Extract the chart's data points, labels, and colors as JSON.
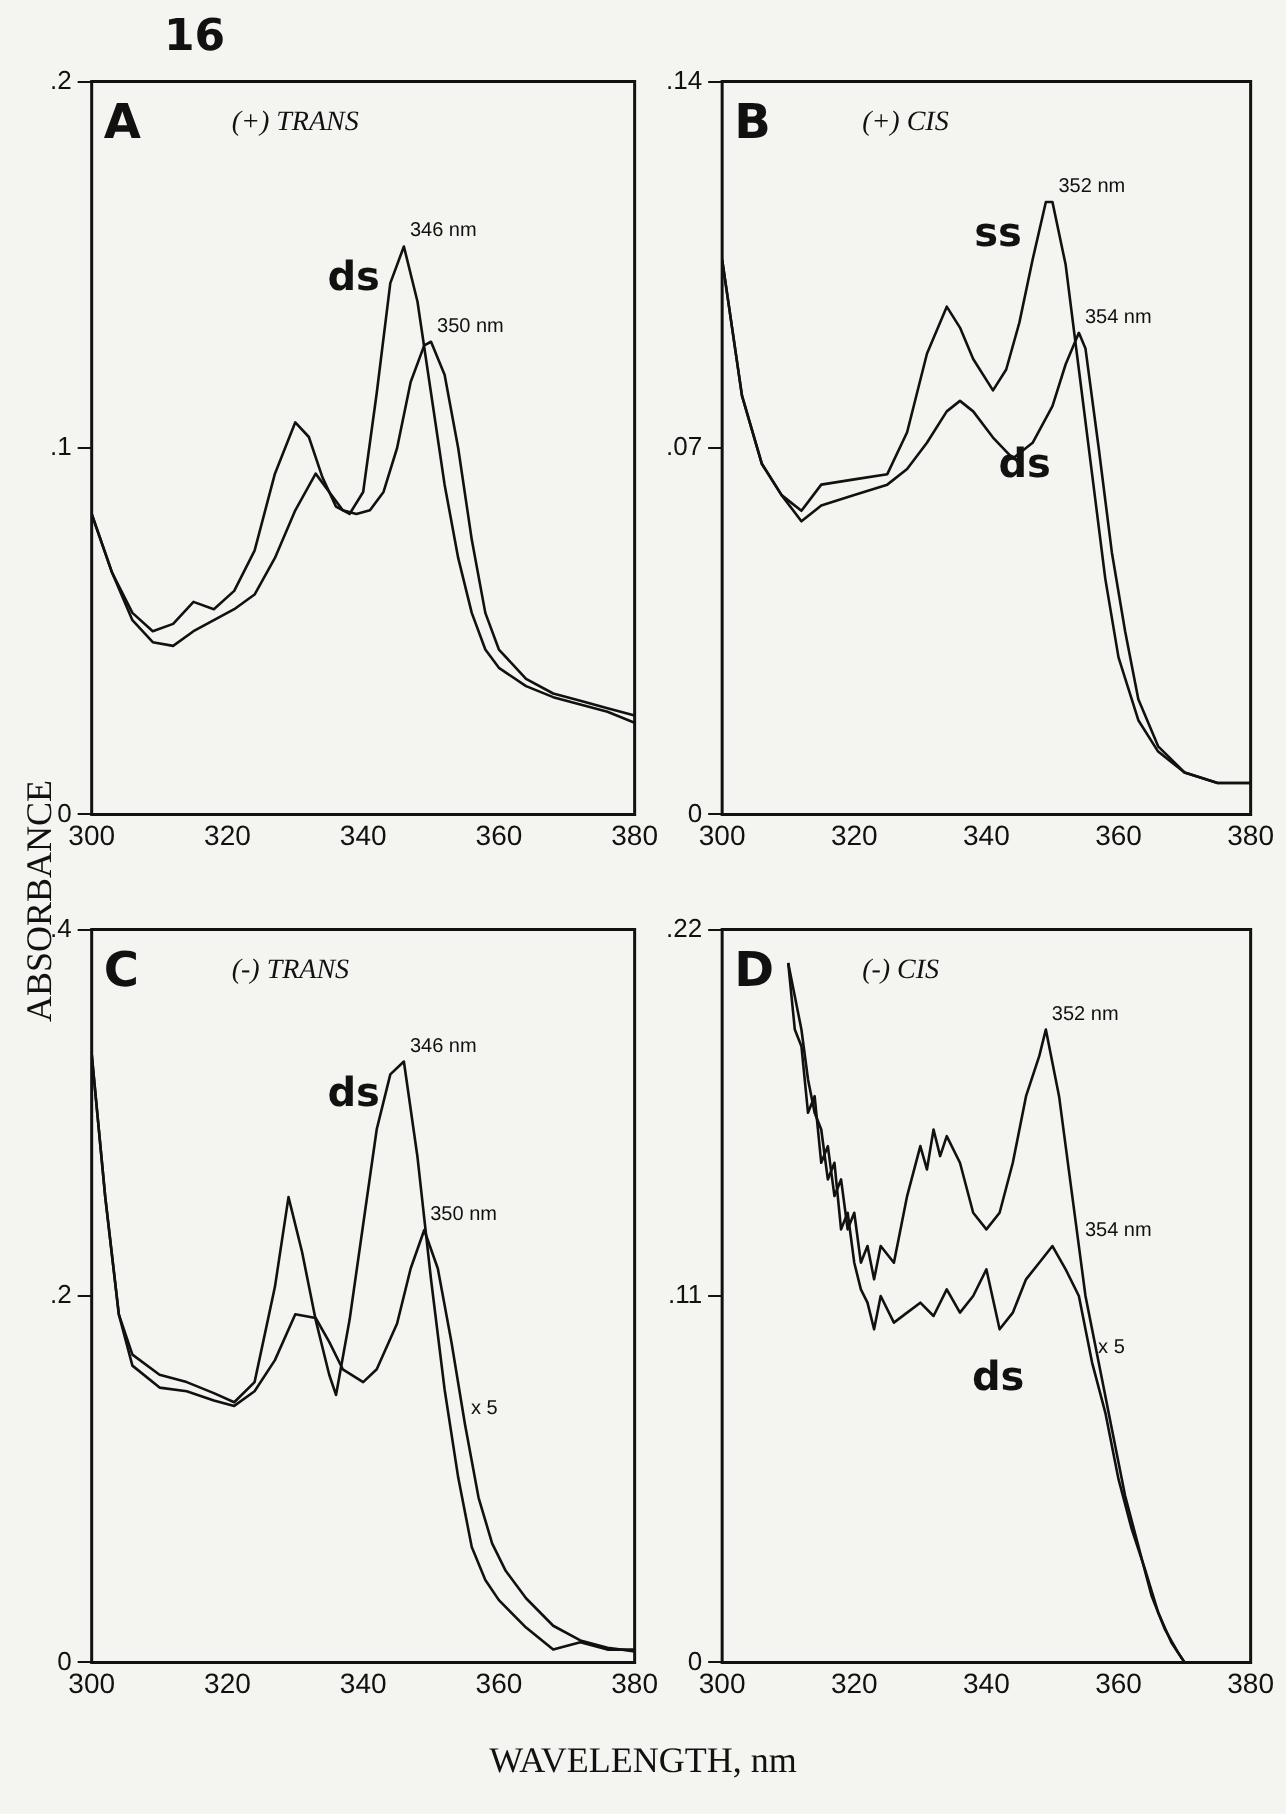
{
  "chart_data": [
    {
      "type": "line",
      "title": "A",
      "subtitle": "(+) TRANS",
      "ylabel": "ABSORBANCE",
      "annotations": [
        "16",
        {
          "text": "346 nm",
          "x": 346,
          "y": 0.155
        },
        {
          "text": "350 nm",
          "x": 350,
          "y": 0.129
        }
      ],
      "xlim": [
        300,
        380
      ],
      "xticks": [
        300,
        320,
        340,
        360,
        380
      ],
      "ylim": [
        0,
        0.2
      ],
      "yticks": [
        {
          "value": 0,
          "label": "0"
        },
        {
          "value": 0.1,
          "label": ".1"
        },
        {
          "value": 0.2,
          "label": ".2"
        }
      ],
      "series": [
        {
          "name": "ds",
          "color": "#111111",
          "x": [
            300,
            303,
            306,
            309,
            312,
            315,
            318,
            321,
            324,
            327,
            330,
            332,
            334,
            336,
            338,
            340,
            342,
            344,
            346,
            348,
            350,
            352,
            354,
            356,
            358,
            360,
            364,
            368,
            372,
            376,
            380
          ],
          "values": [
            0.082,
            0.066,
            0.055,
            0.05,
            0.052,
            0.058,
            0.056,
            0.061,
            0.072,
            0.093,
            0.107,
            0.103,
            0.092,
            0.084,
            0.082,
            0.088,
            0.115,
            0.145,
            0.155,
            0.14,
            0.115,
            0.09,
            0.07,
            0.055,
            0.045,
            0.04,
            0.035,
            0.032,
            0.03,
            0.028,
            0.025
          ]
        },
        {
          "color": "#111111",
          "x": [
            300,
            303,
            306,
            309,
            312,
            315,
            318,
            321,
            324,
            327,
            330,
            333,
            335,
            337,
            339,
            341,
            343,
            345,
            347,
            349,
            350,
            352,
            354,
            356,
            358,
            360,
            364,
            368,
            372,
            376,
            380
          ],
          "values": [
            0.082,
            0.066,
            0.053,
            0.047,
            0.046,
            0.05,
            0.053,
            0.056,
            0.06,
            0.07,
            0.083,
            0.093,
            0.088,
            0.083,
            0.082,
            0.083,
            0.088,
            0.1,
            0.118,
            0.128,
            0.129,
            0.12,
            0.1,
            0.075,
            0.055,
            0.045,
            0.037,
            0.033,
            0.031,
            0.029,
            0.027
          ]
        }
      ]
    },
    {
      "type": "line",
      "title": "B",
      "subtitle": "(+) CIS",
      "annotations": [
        {
          "text": "352 nm",
          "x": 350,
          "y": 0.117
        },
        {
          "text": "354 nm",
          "x": 354,
          "y": 0.092
        }
      ],
      "xlim": [
        300,
        380
      ],
      "xticks": [
        300,
        320,
        340,
        360,
        380
      ],
      "ylim": [
        0,
        0.14
      ],
      "yticks": [
        {
          "value": 0,
          "label": "0"
        },
        {
          "value": 0.07,
          "label": ".07"
        },
        {
          "value": 0.14,
          "label": ".14"
        }
      ],
      "series": [
        {
          "name": "ss",
          "color": "#111111",
          "x": [
            300,
            303,
            306,
            309,
            312,
            315,
            320,
            325,
            328,
            331,
            334,
            336,
            338,
            341,
            343,
            345,
            347,
            349,
            350,
            352,
            354,
            356,
            358,
            360,
            363,
            366,
            370,
            375,
            380
          ],
          "values": [
            0.106,
            0.08,
            0.067,
            0.061,
            0.058,
            0.063,
            0.064,
            0.065,
            0.073,
            0.088,
            0.097,
            0.093,
            0.087,
            0.081,
            0.085,
            0.094,
            0.106,
            0.117,
            0.117,
            0.105,
            0.085,
            0.065,
            0.045,
            0.03,
            0.018,
            0.012,
            0.008,
            0.006,
            0.006
          ]
        },
        {
          "name": "ds",
          "color": "#111111",
          "x": [
            300,
            303,
            306,
            309,
            312,
            315,
            320,
            325,
            328,
            331,
            334,
            336,
            338,
            341,
            344,
            347,
            350,
            352,
            354,
            355,
            357,
            359,
            361,
            363,
            366,
            370,
            375,
            380
          ],
          "values": [
            0.106,
            0.08,
            0.067,
            0.061,
            0.056,
            0.059,
            0.061,
            0.063,
            0.066,
            0.071,
            0.077,
            0.079,
            0.077,
            0.072,
            0.068,
            0.071,
            0.078,
            0.086,
            0.092,
            0.089,
            0.07,
            0.05,
            0.035,
            0.022,
            0.013,
            0.008,
            0.006,
            0.006
          ]
        }
      ]
    },
    {
      "type": "line",
      "title": "C",
      "subtitle": "(-) TRANS",
      "xlabel": "WAVELENGTH, nm",
      "annotations": [
        {
          "text": "346 nm",
          "x": 346,
          "y": 0.328
        },
        {
          "text": "350 nm",
          "x": 349,
          "y": 0.236
        },
        {
          "text": "x 5",
          "x": 355,
          "y": 0.13
        }
      ],
      "xlim": [
        300,
        380
      ],
      "xticks": [
        300,
        320,
        340,
        360,
        380
      ],
      "ylim": [
        0,
        0.4
      ],
      "yticks": [
        {
          "value": 0,
          "label": "0"
        },
        {
          "value": 0.2,
          "label": ".2"
        },
        {
          "value": 0.4,
          "label": ".4"
        }
      ],
      "series": [
        {
          "name": "ds",
          "color": "#111111",
          "x": [
            300,
            302,
            304,
            306,
            310,
            314,
            318,
            321,
            324,
            327,
            329,
            331,
            333,
            335,
            336,
            338,
            340,
            342,
            344,
            346,
            348,
            350,
            352,
            354,
            356,
            358,
            360,
            364,
            368,
            372,
            376,
            380
          ],
          "values": [
            0.332,
            0.254,
            0.19,
            0.168,
            0.157,
            0.153,
            0.147,
            0.142,
            0.153,
            0.205,
            0.254,
            0.224,
            0.187,
            0.157,
            0.146,
            0.187,
            0.239,
            0.291,
            0.321,
            0.328,
            0.276,
            0.209,
            0.149,
            0.101,
            0.063,
            0.045,
            0.034,
            0.019,
            0.007,
            0.011,
            0.007,
            0.007
          ]
        },
        {
          "color": "#111111",
          "x": [
            300,
            302,
            304,
            306,
            310,
            314,
            318,
            321,
            324,
            327,
            330,
            333,
            335,
            337,
            340,
            342,
            345,
            347,
            349,
            351,
            353,
            355,
            357,
            359,
            361,
            364,
            368,
            372,
            376,
            380
          ],
          "values": [
            0.332,
            0.254,
            0.19,
            0.162,
            0.15,
            0.148,
            0.143,
            0.14,
            0.148,
            0.165,
            0.19,
            0.188,
            0.175,
            0.16,
            0.153,
            0.16,
            0.185,
            0.215,
            0.236,
            0.215,
            0.175,
            0.13,
            0.09,
            0.065,
            0.05,
            0.035,
            0.02,
            0.012,
            0.008,
            0.006
          ]
        }
      ]
    },
    {
      "type": "line",
      "title": "D",
      "subtitle": "(-) CIS",
      "annotations": [
        {
          "text": "352 nm",
          "x": 349,
          "y": 0.19
        },
        {
          "text": "354 nm",
          "x": 354,
          "y": 0.125
        },
        {
          "text": "x 5",
          "x": 356,
          "y": 0.09
        }
      ],
      "xlim": [
        300,
        380
      ],
      "xticks": [
        300,
        320,
        340,
        360,
        380
      ],
      "ylim": [
        0,
        0.22
      ],
      "yticks": [
        {
          "value": 0,
          "label": "0"
        },
        {
          "value": 0.11,
          "label": ".11"
        },
        {
          "value": 0.22,
          "label": ".22"
        }
      ],
      "series": [
        {
          "color": "#111111",
          "x": [
            310,
            311,
            312,
            313,
            314,
            315,
            316,
            317,
            318,
            319,
            320,
            321,
            322,
            323,
            324,
            326,
            328,
            330,
            331,
            332,
            333,
            334,
            336,
            338,
            340,
            342,
            344,
            346,
            348,
            349,
            351,
            353,
            355,
            357,
            359,
            361,
            363,
            365,
            367,
            369,
            370
          ],
          "values": [
            0.21,
            0.19,
            0.185,
            0.165,
            0.17,
            0.15,
            0.155,
            0.14,
            0.145,
            0.13,
            0.135,
            0.12,
            0.125,
            0.115,
            0.125,
            0.12,
            0.14,
            0.155,
            0.148,
            0.16,
            0.152,
            0.158,
            0.15,
            0.135,
            0.13,
            0.135,
            0.15,
            0.17,
            0.182,
            0.19,
            0.17,
            0.14,
            0.11,
            0.09,
            0.07,
            0.05,
            0.035,
            0.02,
            0.01,
            0.003,
            0
          ]
        },
        {
          "name": "ds",
          "color": "#111111",
          "x": [
            310,
            311,
            312,
            313,
            314,
            315,
            316,
            317,
            318,
            319,
            320,
            321,
            322,
            323,
            324,
            326,
            328,
            330,
            332,
            334,
            336,
            338,
            340,
            342,
            344,
            346,
            348,
            350,
            352,
            354,
            356,
            358,
            360,
            362,
            364,
            366,
            368,
            370
          ],
          "values": [
            0.21,
            0.2,
            0.19,
            0.175,
            0.165,
            0.16,
            0.145,
            0.15,
            0.13,
            0.135,
            0.12,
            0.112,
            0.108,
            0.1,
            0.11,
            0.102,
            0.105,
            0.108,
            0.104,
            0.112,
            0.105,
            0.11,
            0.118,
            0.1,
            0.105,
            0.115,
            0.12,
            0.125,
            0.118,
            0.11,
            0.09,
            0.075,
            0.055,
            0.04,
            0.028,
            0.015,
            0.006,
            0
          ]
        }
      ]
    }
  ]
}
